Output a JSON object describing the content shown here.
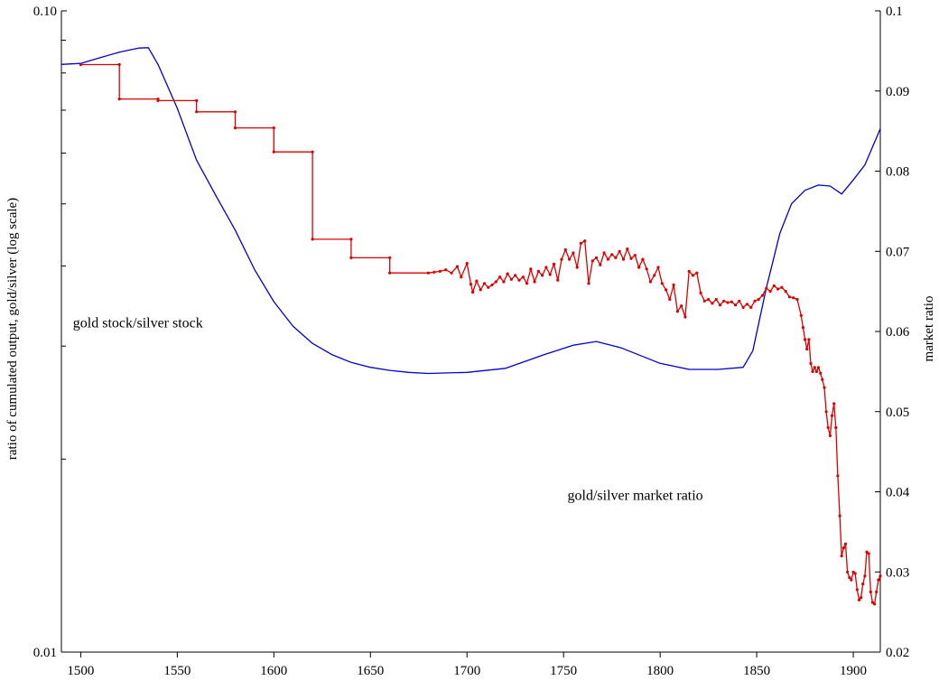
{
  "chart_data": {
    "type": "line",
    "title": "",
    "xlabel": "",
    "ylabel_left": "ratio of cumulated output, gold/silver (log scale)",
    "ylabel_right": "market ratio",
    "grid": false,
    "legend": "none",
    "x_axis": {
      "range": [
        1490,
        1914
      ],
      "ticks": [
        1500,
        1550,
        1600,
        1650,
        1700,
        1750,
        1800,
        1850,
        1900
      ],
      "tick_labels": [
        "1500",
        "1550",
        "1600",
        "1650",
        "1700",
        "1750",
        "1800",
        "1850",
        "1900"
      ]
    },
    "y_left": {
      "scale": "log",
      "range": [
        0.01,
        0.1
      ],
      "labeled_ticks": [
        0.01,
        0.1
      ],
      "tick_labels": [
        "0.01",
        "0.10"
      ],
      "minor_ticks": [
        0.02,
        0.03,
        0.04,
        0.05,
        0.06,
        0.07,
        0.08,
        0.09
      ]
    },
    "y_right": {
      "scale": "linear",
      "range": [
        0.02,
        0.1
      ],
      "ticks": [
        0.02,
        0.03,
        0.04,
        0.05,
        0.06,
        0.07,
        0.08,
        0.09,
        0.1
      ],
      "tick_labels": [
        "0.02",
        "0.03",
        "0.04",
        "0.05",
        "0.06",
        "0.07",
        "0.08",
        "0.09",
        "0.1"
      ]
    },
    "annotations": [
      {
        "text": "gold stock/silver stock",
        "x": 1496,
        "y_right": 0.0605
      },
      {
        "text": "gold/silver market ratio",
        "x": 1752,
        "y_right": 0.039
      }
    ],
    "series": [
      {
        "key": "stock_ratio",
        "axis": "left",
        "color": "#0000cc",
        "marker": "none",
        "points": [
          [
            1490,
            0.0825
          ],
          [
            1500,
            0.0828
          ],
          [
            1510,
            0.0845
          ],
          [
            1520,
            0.0862
          ],
          [
            1530,
            0.0875
          ],
          [
            1535,
            0.0876
          ],
          [
            1540,
            0.0825
          ],
          [
            1550,
            0.0705
          ],
          [
            1560,
            0.0585
          ],
          [
            1570,
            0.0515
          ],
          [
            1580,
            0.0455
          ],
          [
            1590,
            0.0395
          ],
          [
            1600,
            0.0352
          ],
          [
            1610,
            0.0322
          ],
          [
            1620,
            0.0303
          ],
          [
            1630,
            0.0291
          ],
          [
            1640,
            0.0283
          ],
          [
            1650,
            0.0278
          ],
          [
            1660,
            0.0275
          ],
          [
            1670,
            0.0273
          ],
          [
            1680,
            0.0272
          ],
          [
            1700,
            0.0273
          ],
          [
            1720,
            0.0277
          ],
          [
            1740,
            0.0291
          ],
          [
            1755,
            0.0301
          ],
          [
            1767,
            0.0305
          ],
          [
            1780,
            0.0298
          ],
          [
            1800,
            0.0282
          ],
          [
            1815,
            0.0276
          ],
          [
            1830,
            0.0276
          ],
          [
            1843,
            0.0278
          ],
          [
            1848,
            0.0295
          ],
          [
            1855,
            0.037
          ],
          [
            1862,
            0.045
          ],
          [
            1868,
            0.05
          ],
          [
            1875,
            0.0525
          ],
          [
            1882,
            0.0535
          ],
          [
            1888,
            0.0533
          ],
          [
            1894,
            0.0518
          ],
          [
            1900,
            0.0545
          ],
          [
            1906,
            0.0575
          ],
          [
            1914,
            0.0655
          ]
        ]
      },
      {
        "key": "market_ratio",
        "axis": "right",
        "color": "#dd0000",
        "marker": "dot",
        "points": [
          [
            1500,
            0.0933
          ],
          [
            1520,
            0.0933
          ],
          [
            1520,
            0.089
          ],
          [
            1540,
            0.089
          ],
          [
            1540,
            0.0888
          ],
          [
            1560,
            0.0888
          ],
          [
            1560,
            0.0874
          ],
          [
            1580,
            0.0874
          ],
          [
            1580,
            0.0854
          ],
          [
            1600,
            0.0854
          ],
          [
            1600,
            0.0824
          ],
          [
            1620,
            0.0824
          ],
          [
            1620,
            0.0715
          ],
          [
            1640,
            0.0715
          ],
          [
            1640,
            0.0692
          ],
          [
            1660,
            0.0692
          ],
          [
            1660,
            0.0673
          ],
          [
            1680,
            0.0673
          ],
          [
            1683,
            0.0674
          ],
          [
            1686,
            0.0675
          ],
          [
            1689,
            0.0677
          ],
          [
            1692,
            0.0673
          ],
          [
            1695,
            0.0681
          ],
          [
            1697,
            0.0668
          ],
          [
            1700,
            0.0685
          ],
          [
            1702,
            0.0659
          ],
          [
            1703,
            0.0649
          ],
          [
            1705,
            0.0663
          ],
          [
            1707,
            0.0652
          ],
          [
            1709,
            0.066
          ],
          [
            1711,
            0.0655
          ],
          [
            1713,
            0.0658
          ],
          [
            1715,
            0.0662
          ],
          [
            1717,
            0.0668
          ],
          [
            1719,
            0.0662
          ],
          [
            1721,
            0.0672
          ],
          [
            1723,
            0.0665
          ],
          [
            1725,
            0.067
          ],
          [
            1727,
            0.0664
          ],
          [
            1729,
            0.0668
          ],
          [
            1731,
            0.066
          ],
          [
            1733,
            0.0678
          ],
          [
            1735,
            0.0662
          ],
          [
            1737,
            0.0675
          ],
          [
            1739,
            0.067
          ],
          [
            1741,
            0.068
          ],
          [
            1743,
            0.0671
          ],
          [
            1745,
            0.0684
          ],
          [
            1747,
            0.0664
          ],
          [
            1749,
            0.069
          ],
          [
            1751,
            0.0702
          ],
          [
            1753,
            0.069
          ],
          [
            1755,
            0.0698
          ],
          [
            1757,
            0.068
          ],
          [
            1759,
            0.071
          ],
          [
            1761,
            0.0713
          ],
          [
            1763,
            0.066
          ],
          [
            1765,
            0.0688
          ],
          [
            1767,
            0.0692
          ],
          [
            1769,
            0.0683
          ],
          [
            1771,
            0.0698
          ],
          [
            1773,
            0.069
          ],
          [
            1775,
            0.0696
          ],
          [
            1777,
            0.0692
          ],
          [
            1779,
            0.07
          ],
          [
            1781,
            0.069
          ],
          [
            1783,
            0.0703
          ],
          [
            1785,
            0.0691
          ],
          [
            1787,
            0.0695
          ],
          [
            1789,
            0.068
          ],
          [
            1791,
            0.069
          ],
          [
            1793,
            0.0678
          ],
          [
            1795,
            0.0662
          ],
          [
            1797,
            0.067
          ],
          [
            1799,
            0.068
          ],
          [
            1801,
            0.066
          ],
          [
            1803,
            0.0652
          ],
          [
            1805,
            0.064
          ],
          [
            1807,
            0.0658
          ],
          [
            1809,
            0.0625
          ],
          [
            1811,
            0.0632
          ],
          [
            1813,
            0.0618
          ],
          [
            1815,
            0.0675
          ],
          [
            1817,
            0.067
          ],
          [
            1819,
            0.0673
          ],
          [
            1821,
            0.0648
          ],
          [
            1823,
            0.0638
          ],
          [
            1825,
            0.064
          ],
          [
            1827,
            0.0635
          ],
          [
            1829,
            0.064
          ],
          [
            1831,
            0.0633
          ],
          [
            1833,
            0.0638
          ],
          [
            1835,
            0.0636
          ],
          [
            1837,
            0.0637
          ],
          [
            1839,
            0.0633
          ],
          [
            1841,
            0.0638
          ],
          [
            1843,
            0.063
          ],
          [
            1845,
            0.0634
          ],
          [
            1847,
            0.063
          ],
          [
            1849,
            0.0638
          ],
          [
            1851,
            0.064
          ],
          [
            1853,
            0.0645
          ],
          [
            1855,
            0.0654
          ],
          [
            1857,
            0.065
          ],
          [
            1859,
            0.0657
          ],
          [
            1861,
            0.0653
          ],
          [
            1863,
            0.0655
          ],
          [
            1865,
            0.065
          ],
          [
            1867,
            0.0643
          ],
          [
            1869,
            0.0642
          ],
          [
            1871,
            0.064
          ],
          [
            1873,
            0.062
          ],
          [
            1874,
            0.0605
          ],
          [
            1875,
            0.059
          ],
          [
            1876,
            0.0578
          ],
          [
            1877,
            0.059
          ],
          [
            1878,
            0.056
          ],
          [
            1879,
            0.055
          ],
          [
            1880,
            0.0555
          ],
          [
            1881,
            0.055
          ],
          [
            1882,
            0.0555
          ],
          [
            1883,
            0.0548
          ],
          [
            1884,
            0.054
          ],
          [
            1885,
            0.053
          ],
          [
            1886,
            0.05
          ],
          [
            1887,
            0.048
          ],
          [
            1888,
            0.047
          ],
          [
            1889,
            0.0495
          ],
          [
            1890,
            0.051
          ],
          [
            1891,
            0.048
          ],
          [
            1892,
            0.042
          ],
          [
            1893,
            0.037
          ],
          [
            1894,
            0.032
          ],
          [
            1895,
            0.033
          ],
          [
            1896,
            0.0335
          ],
          [
            1897,
            0.03
          ],
          [
            1898,
            0.0293
          ],
          [
            1899,
            0.029
          ],
          [
            1900,
            0.03
          ],
          [
            1901,
            0.0298
          ],
          [
            1902,
            0.0278
          ],
          [
            1903,
            0.0265
          ],
          [
            1904,
            0.0268
          ],
          [
            1905,
            0.0285
          ],
          [
            1906,
            0.0295
          ],
          [
            1907,
            0.0325
          ],
          [
            1908,
            0.0323
          ],
          [
            1909,
            0.0275
          ],
          [
            1910,
            0.0262
          ],
          [
            1911,
            0.026
          ],
          [
            1912,
            0.0275
          ],
          [
            1913,
            0.029
          ],
          [
            1914,
            0.0295
          ]
        ]
      }
    ]
  }
}
